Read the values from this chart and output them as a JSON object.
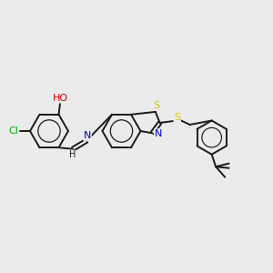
{
  "bg_color": "#ebebeb",
  "bond_color": "#1a1a1a",
  "bond_lw": 1.4,
  "afs": 8.0,
  "atom_colors": {
    "O": "#cc0000",
    "N": "#0000cc",
    "S": "#cccc00",
    "Cl": "#00aa00",
    "C": "#1a1a1a",
    "H": "#1a1a1a"
  },
  "figsize": [
    3.0,
    3.0
  ],
  "dpi": 100,
  "xlim": [
    -0.5,
    9.5
  ],
  "ylim": [
    1.0,
    9.0
  ]
}
